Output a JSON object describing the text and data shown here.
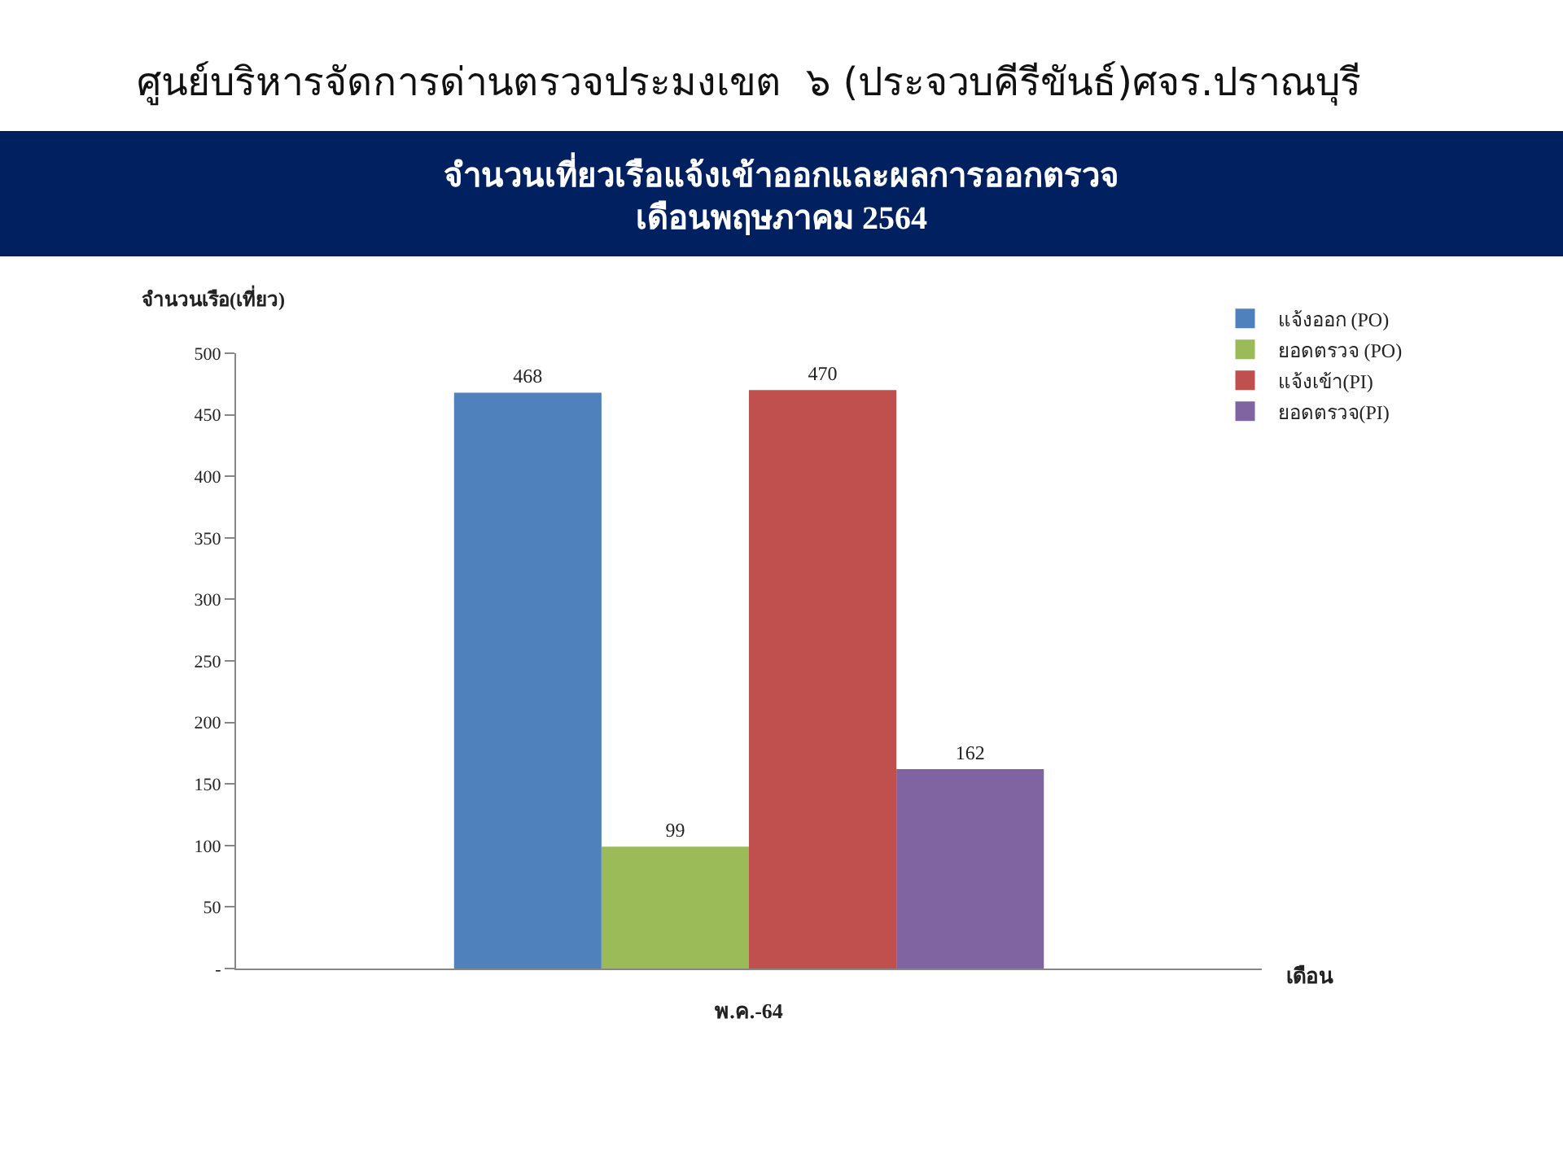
{
  "chart_data": {
    "type": "bar",
    "title": "ศูนย์บริหารจัดการด่านตรวจประมงเขต  ๖ (ประจวบคีรีขันธ์)ศจร.ปราณบุรี",
    "subtitle": "จำนวนเที่ยวเรือแจ้งเข้าออกและผลการออกตรวจ\nเดือนพฤษภาคม 2564",
    "ylabel": "จำนวนเรือ(เที่ยว)",
    "xlabel": "เดือน",
    "categories": [
      "พ.ค.-64"
    ],
    "series": [
      {
        "name": "แจ้งออก (PO)",
        "color": "#4f81bd",
        "values": [
          468
        ]
      },
      {
        "name": "ยอดตรวจ (PO)",
        "color": "#9bbb59",
        "values": [
          99
        ]
      },
      {
        "name": "แจ้งเข้า(PI)",
        "color": "#c0504d",
        "values": [
          470
        ]
      },
      {
        "name": "ยอดตรวจ(PI)",
        "color": "#8064a2",
        "values": [
          162
        ]
      }
    ],
    "ylim": [
      0,
      500
    ],
    "yticks": [
      {
        "value": 0,
        "label": "-"
      },
      50,
      100,
      150,
      200,
      250,
      300,
      350,
      400,
      450,
      500
    ],
    "data_labels": true,
    "grid": false,
    "legend": "top right"
  }
}
